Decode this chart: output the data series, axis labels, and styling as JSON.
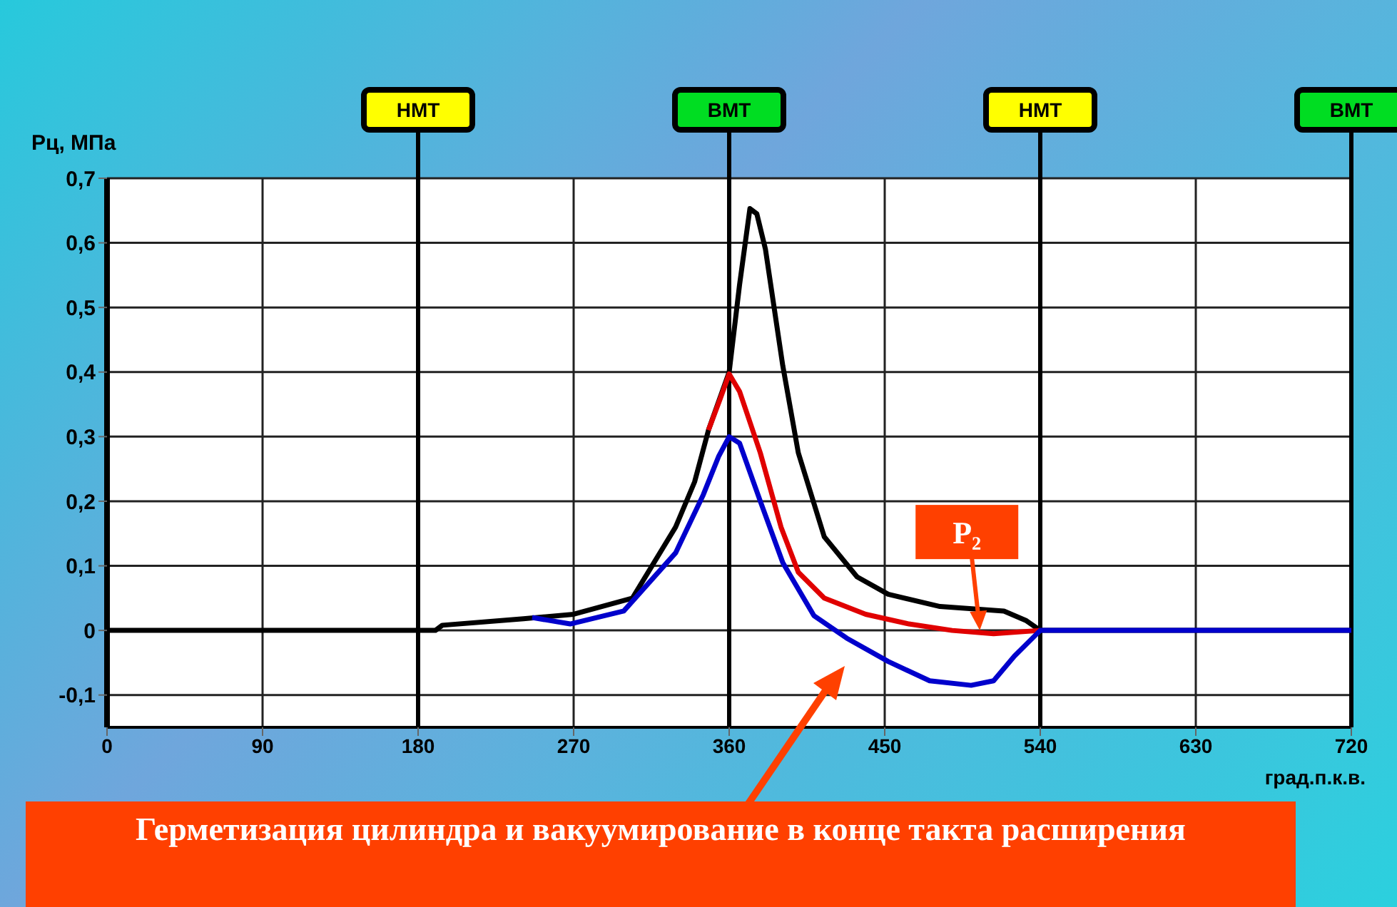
{
  "chart_data": {
    "type": "line",
    "ylabel": "Pц, МПа",
    "xlabel": "град.п.к.в.",
    "xlim": [
      0,
      720
    ],
    "xticks": [
      0,
      90,
      180,
      270,
      360,
      450,
      540,
      630,
      720
    ],
    "ylim": [
      -0.15,
      0.7
    ],
    "yticks": [
      {
        "value": -0.1,
        "label": "-0,1"
      },
      0,
      {
        "value": 0.1,
        "label": "0,1"
      },
      {
        "value": 0.2,
        "label": "0,2"
      },
      {
        "value": 0.3,
        "label": "0,3"
      },
      {
        "value": 0.4,
        "label": "0,4"
      },
      {
        "value": 0.5,
        "label": "0,5"
      },
      {
        "value": 0.6,
        "label": "0,6"
      },
      {
        "value": 0.7,
        "label": "0,7"
      }
    ],
    "grid": true,
    "marker": "none",
    "line_style": "solid",
    "series": [
      {
        "color": "#000000",
        "x": [
          0,
          190,
          194,
          241,
          270,
          304,
          329,
          340,
          348,
          360,
          366,
          372,
          376,
          381,
          391,
          400,
          415,
          434,
          452,
          482,
          519,
          532,
          540,
          720
        ],
        "values": [
          0,
          0,
          0.008,
          0.018,
          0.025,
          0.05,
          0.16,
          0.23,
          0.31,
          0.4,
          0.535,
          0.653,
          0.645,
          0.59,
          0.41,
          0.275,
          0.145,
          0.083,
          0.056,
          0.037,
          0.03,
          0.015,
          0,
          0
        ]
      },
      {
        "color": "#e00000",
        "x": [
          348,
          355,
          360,
          366,
          378,
          390,
          400,
          415,
          439,
          464,
          489,
          513,
          540
        ],
        "values": [
          0.31,
          0.36,
          0.397,
          0.37,
          0.275,
          0.16,
          0.09,
          0.05,
          0.025,
          0.01,
          0,
          -0.005,
          0
        ]
      },
      {
        "color": "#0000cc",
        "x": [
          246,
          268,
          299,
          329,
          345,
          354,
          360,
          366,
          378,
          391,
          409,
          428,
          452,
          476,
          500,
          513,
          525,
          540,
          720
        ],
        "values": [
          0.02,
          0.01,
          0.03,
          0.12,
          0.21,
          0.27,
          0.3,
          0.29,
          0.2,
          0.105,
          0.023,
          -0.012,
          -0.048,
          -0.078,
          -0.085,
          -0.078,
          -0.04,
          0,
          0
        ]
      }
    ],
    "ref_lines": [
      {
        "axis": "x",
        "value": 180,
        "label": "НМТ"
      },
      {
        "axis": "x",
        "value": 360,
        "label": "ВМТ"
      },
      {
        "axis": "x",
        "value": 540,
        "label": "НМТ"
      },
      {
        "axis": "x",
        "value": 720,
        "label": "ВМТ"
      }
    ],
    "annotations": [
      {
        "text": "P₂",
        "x": 505,
        "y": 0
      },
      "Герметизация цилиндра и вакуумирование в конце такта расширения"
    ]
  }
}
